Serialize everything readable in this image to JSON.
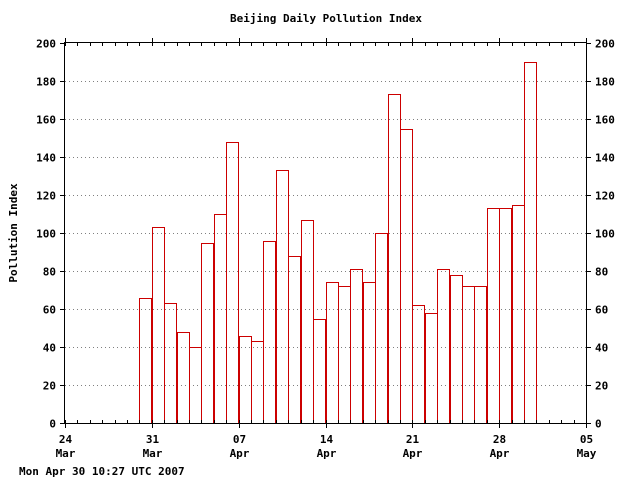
{
  "chart_data": {
    "type": "bar",
    "title": "Beijing Daily Pollution Index",
    "ylabel": "Pollution Index",
    "xlabel": "",
    "ylim": [
      0,
      200
    ],
    "yticks": [
      0,
      20,
      40,
      60,
      80,
      100,
      120,
      140,
      160,
      180,
      200
    ],
    "xlim": [
      "2007-03-24",
      "2007-05-05"
    ],
    "xticks": [
      {
        "day": "24",
        "month": "Mar",
        "date": "2007-03-24"
      },
      {
        "day": "31",
        "month": "Mar",
        "date": "2007-03-31"
      },
      {
        "day": "07",
        "month": "Apr",
        "date": "2007-04-07"
      },
      {
        "day": "14",
        "month": "Apr",
        "date": "2007-04-14"
      },
      {
        "day": "21",
        "month": "Apr",
        "date": "2007-04-21"
      },
      {
        "day": "28",
        "month": "Apr",
        "date": "2007-04-28"
      },
      {
        "day": "05",
        "month": "May",
        "date": "2007-05-05"
      }
    ],
    "series_color": "#cc0000",
    "grid": "horizontal dotted",
    "points": [
      {
        "date": "2007-03-30",
        "value": 66
      },
      {
        "date": "2007-03-31",
        "value": 103
      },
      {
        "date": "2007-04-01",
        "value": 63
      },
      {
        "date": "2007-04-02",
        "value": 48
      },
      {
        "date": "2007-04-03",
        "value": 40
      },
      {
        "date": "2007-04-04",
        "value": 95
      },
      {
        "date": "2007-04-05",
        "value": 110
      },
      {
        "date": "2007-04-06",
        "value": 148
      },
      {
        "date": "2007-04-07",
        "value": 46
      },
      {
        "date": "2007-04-08",
        "value": 43
      },
      {
        "date": "2007-04-09",
        "value": 96
      },
      {
        "date": "2007-04-10",
        "value": 133
      },
      {
        "date": "2007-04-11",
        "value": 88
      },
      {
        "date": "2007-04-12",
        "value": 107
      },
      {
        "date": "2007-04-13",
        "value": 55
      },
      {
        "date": "2007-04-14",
        "value": 74
      },
      {
        "date": "2007-04-15",
        "value": 72
      },
      {
        "date": "2007-04-16",
        "value": 81
      },
      {
        "date": "2007-04-17",
        "value": 74
      },
      {
        "date": "2007-04-18",
        "value": 100
      },
      {
        "date": "2007-04-19",
        "value": 173
      },
      {
        "date": "2007-04-20",
        "value": 155
      },
      {
        "date": "2007-04-21",
        "value": 62
      },
      {
        "date": "2007-04-22",
        "value": 58
      },
      {
        "date": "2007-04-23",
        "value": 81
      },
      {
        "date": "2007-04-24",
        "value": 78
      },
      {
        "date": "2007-04-25",
        "value": 72
      },
      {
        "date": "2007-04-26",
        "value": 72
      },
      {
        "date": "2007-04-27",
        "value": 113
      },
      {
        "date": "2007-04-28",
        "value": 113
      },
      {
        "date": "2007-04-29",
        "value": 115
      },
      {
        "date": "2007-04-30",
        "value": 190
      }
    ]
  },
  "footer": {
    "timestamp": "Mon Apr 30 10:27 UTC 2007"
  }
}
